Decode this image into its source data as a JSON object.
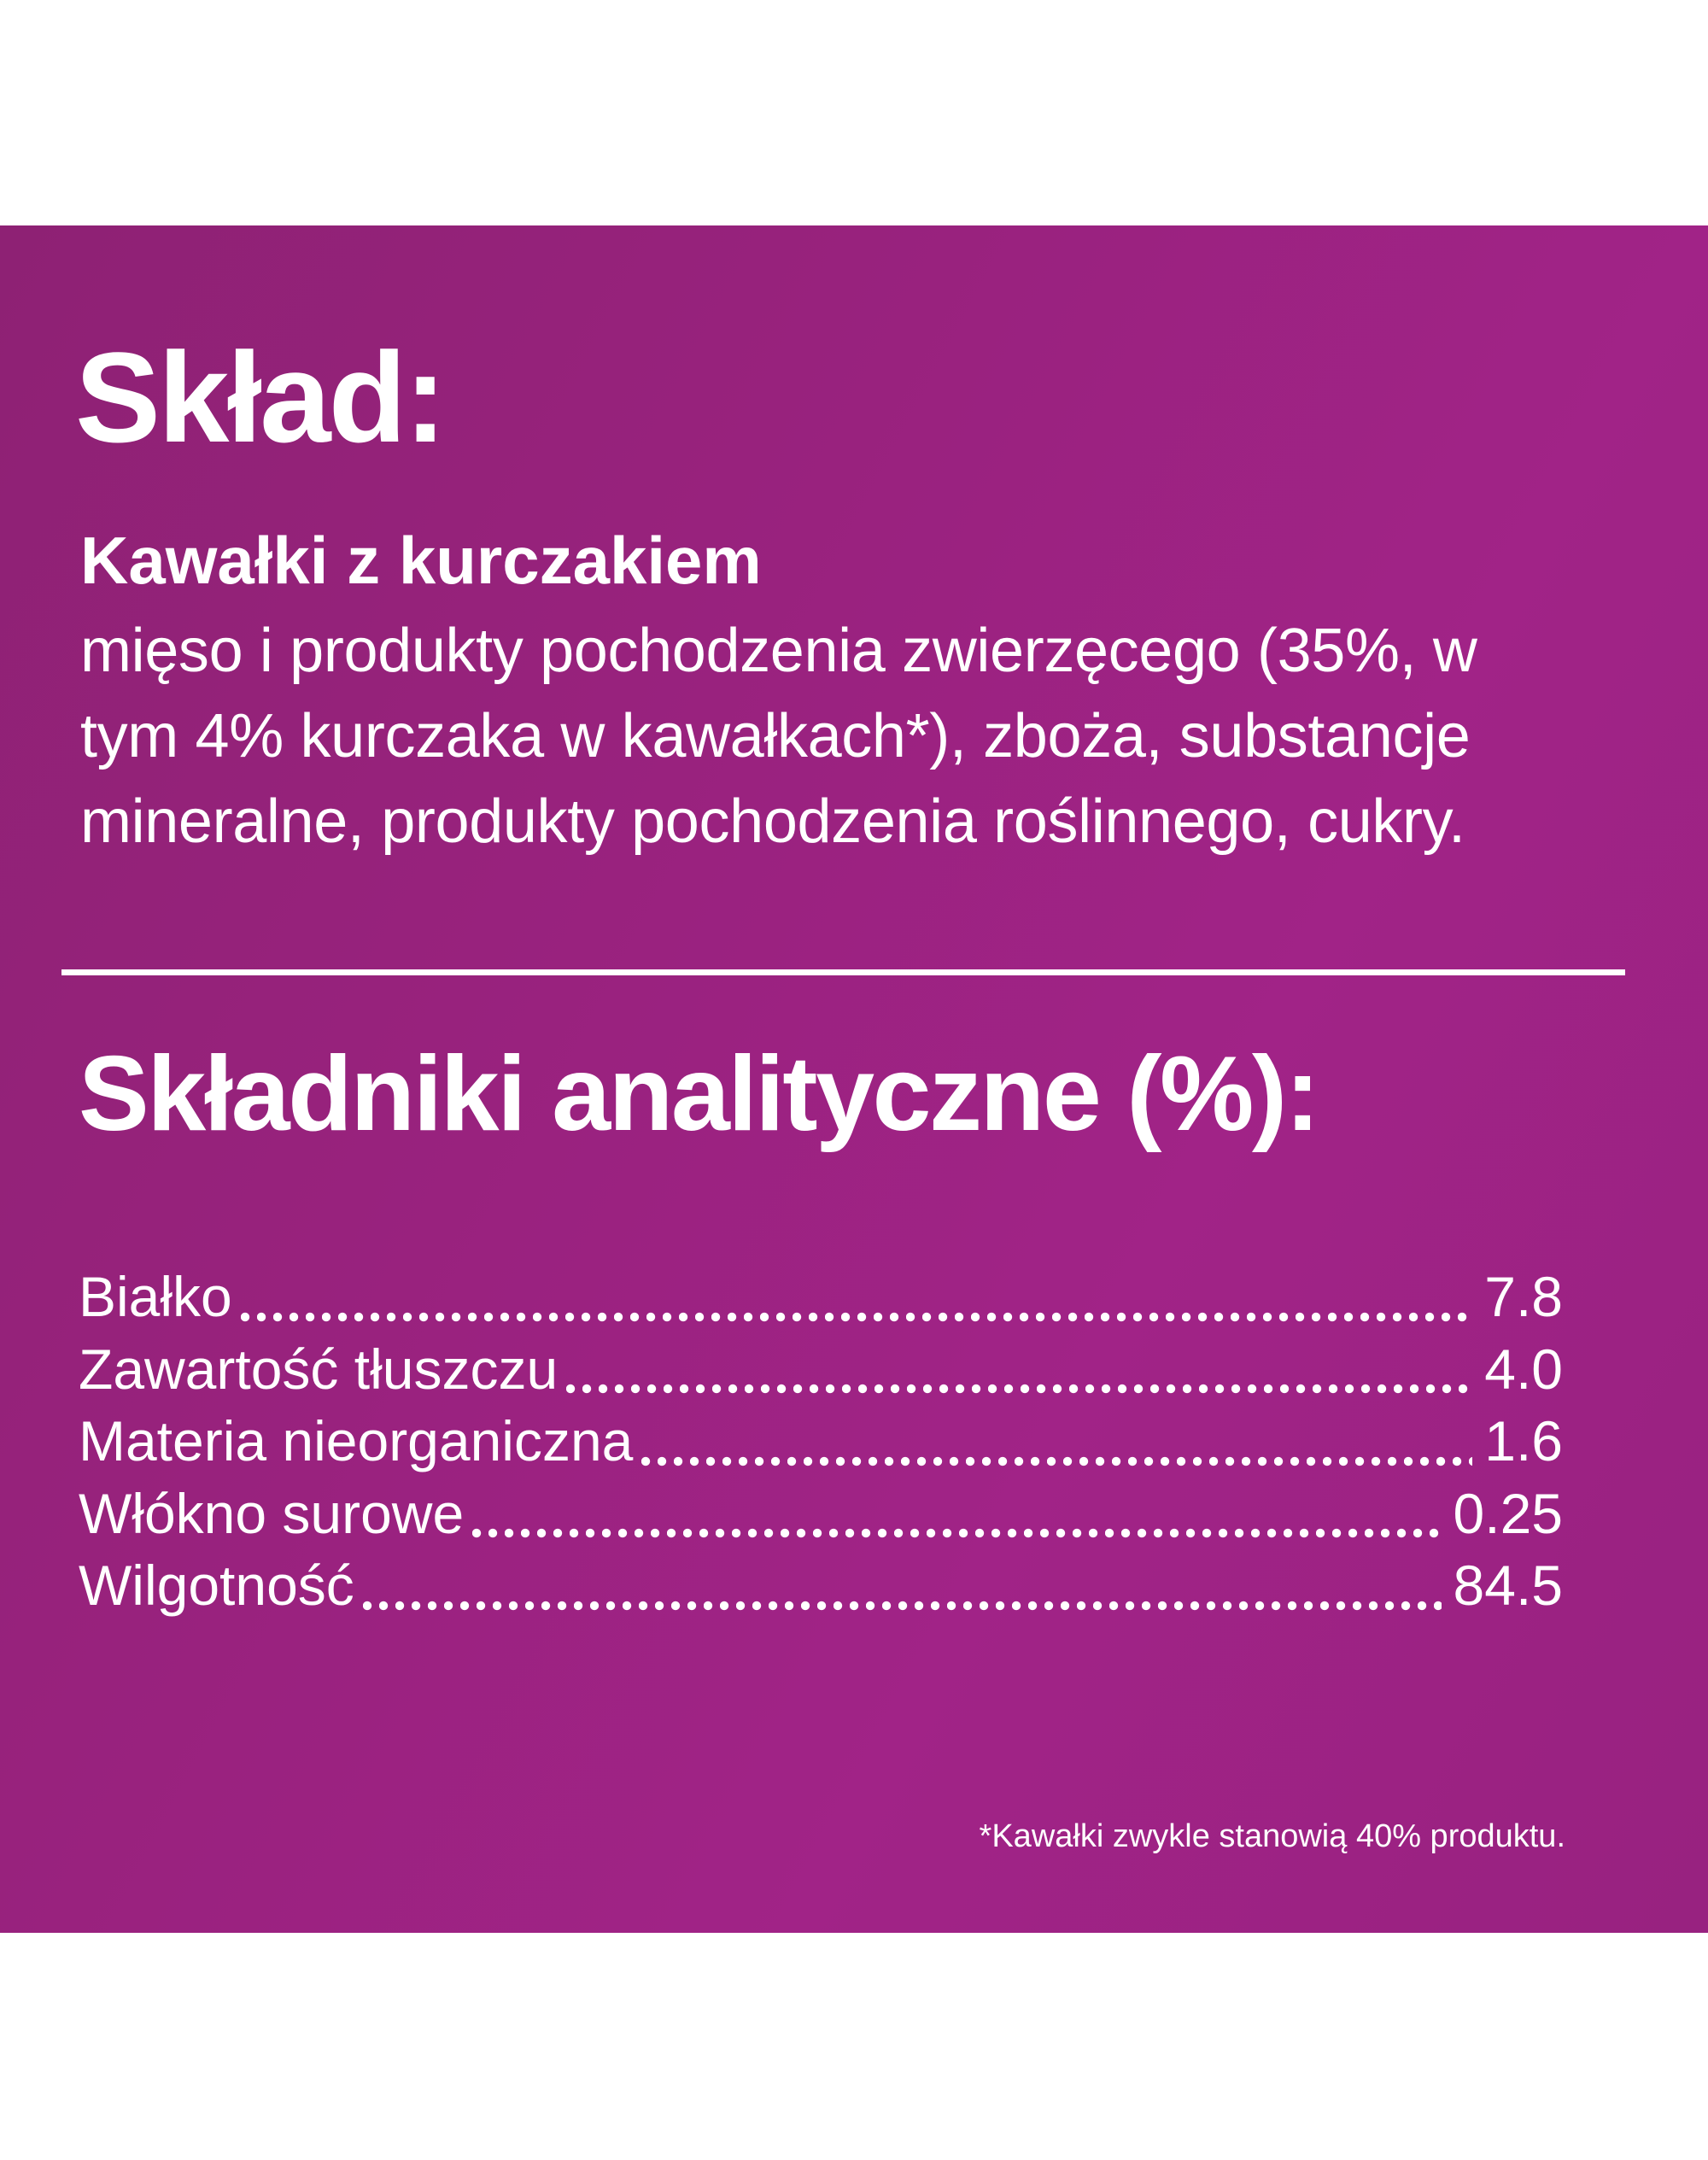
{
  "colors": {
    "panel_purple_dark": "#8e2174",
    "panel_purple_mid": "#9c2382",
    "panel_purple_bright": "#a12387",
    "text": "#ffffff",
    "page_background": "#ffffff"
  },
  "sklad": {
    "title": "Skład:",
    "product_name": "Kawałki z kurczakiem",
    "ingredients_lines": [
      "mięso i produkty pochodzenia zwierzęcego (35%, w",
      "tym 4% kurczaka w kawałkach*), zboża, substancje",
      "mineralne, produkty pochodzenia roślinnego, cukry."
    ]
  },
  "analytical": {
    "title": "Składniki analityczne (%):",
    "rows": [
      {
        "label": "Białko",
        "value": "7.8"
      },
      {
        "label": "Zawartość tłuszczu",
        "value": "4.0"
      },
      {
        "label": "Materia nieorganiczna",
        "value": "1.6"
      },
      {
        "label": "Włókno surowe",
        "value": "0.25"
      },
      {
        "label": "Wilgotność",
        "value": "84.5"
      }
    ]
  },
  "footnote": "*Kawałki zwykle stanowią 40% produktu."
}
